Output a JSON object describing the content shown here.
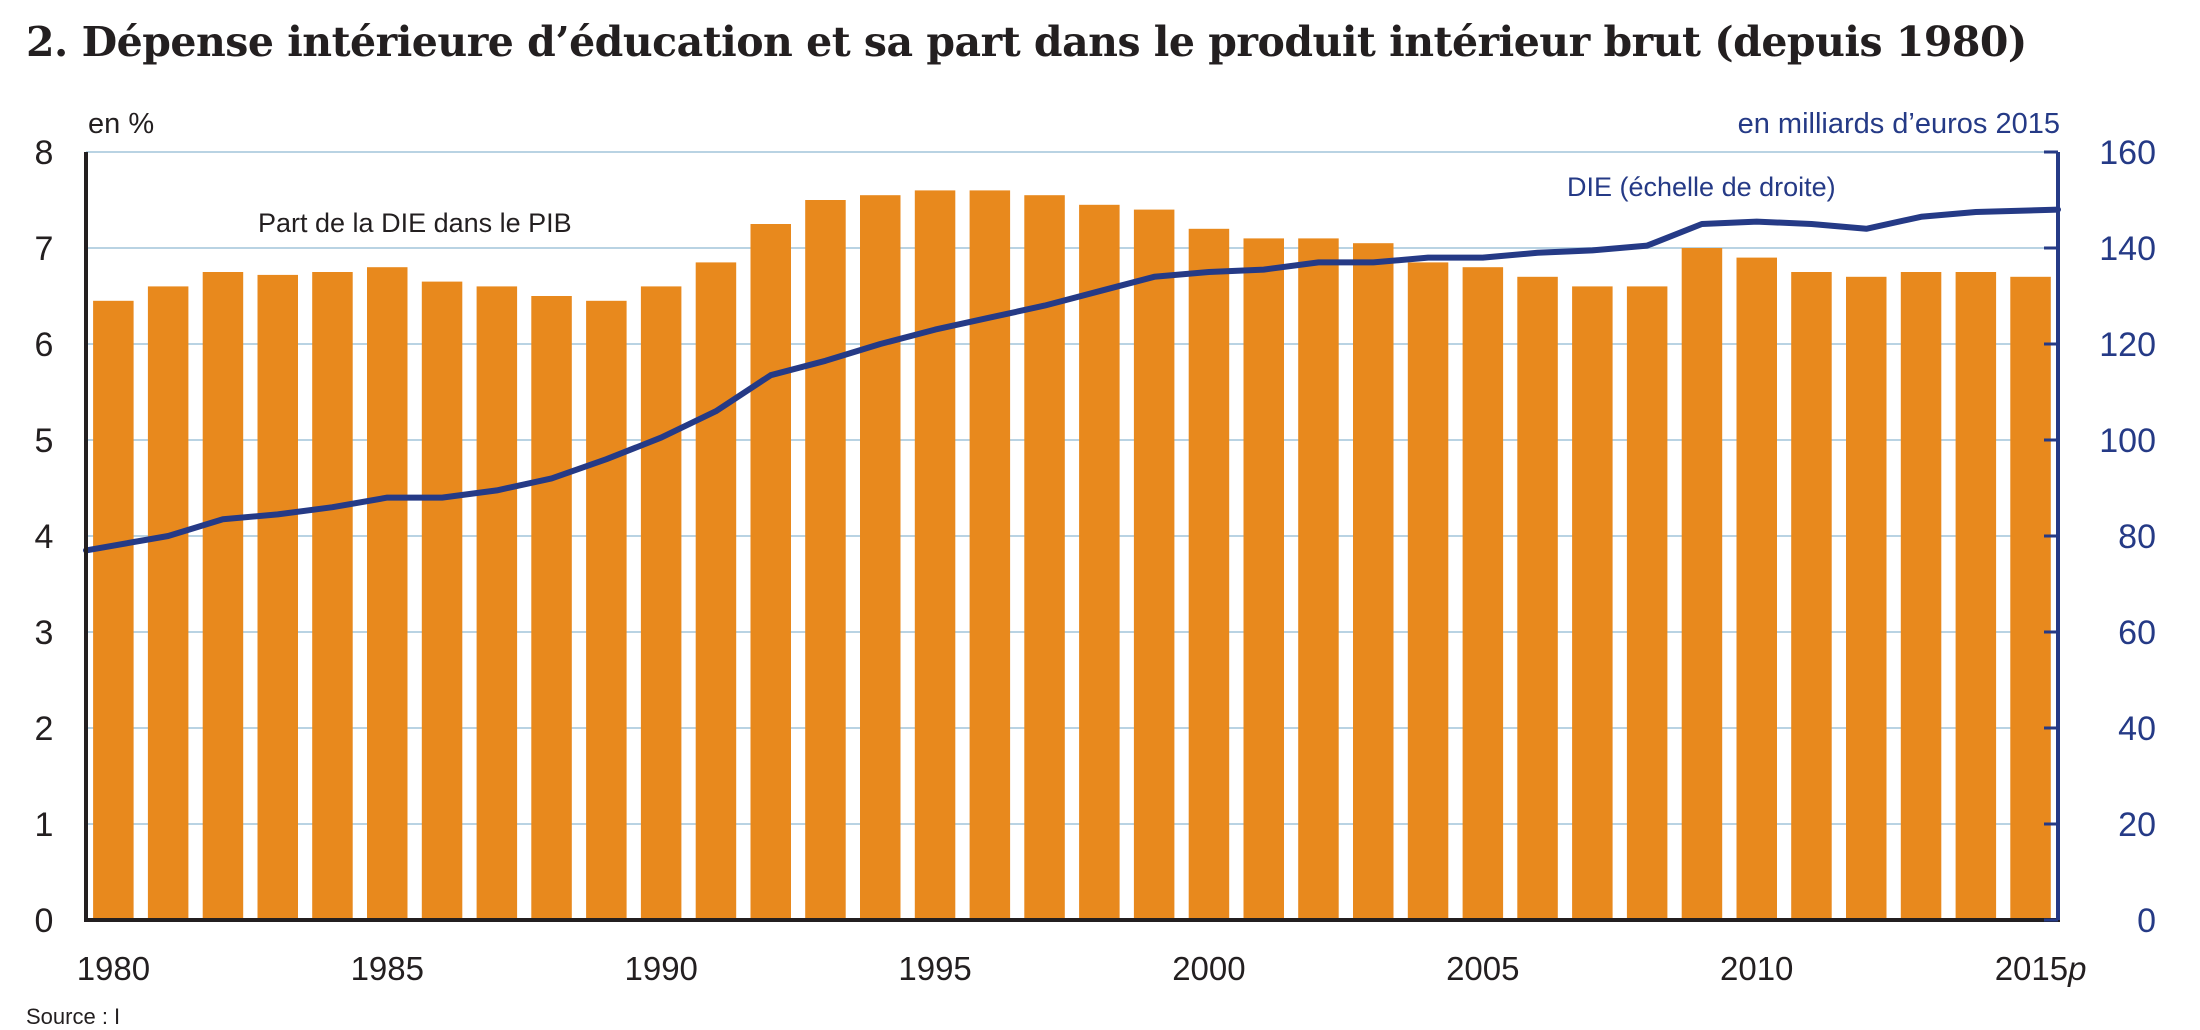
{
  "chart_data": {
    "type": "bar+line",
    "title": "2. Dépense intérieure d’éducation et sa part dans le produit intérieur brut (depuis 1980)",
    "left_axis_label": "en %",
    "right_axis_label": "en milliards d’euros 2015",
    "left_ylim": [
      0,
      8
    ],
    "right_ylim": [
      0,
      160
    ],
    "left_ticks": [
      "0",
      "1",
      "2",
      "3",
      "4",
      "5",
      "6",
      "7",
      "8"
    ],
    "right_ticks": [
      "0",
      "20",
      "40",
      "60",
      "80",
      "100",
      "120",
      "140",
      "160"
    ],
    "x_tick_labels": [
      {
        "year": 1980,
        "label": "1980"
      },
      {
        "year": 1985,
        "label": "1985"
      },
      {
        "year": 1990,
        "label": "1990"
      },
      {
        "year": 1995,
        "label": "1995"
      },
      {
        "year": 2000,
        "label": "2000"
      },
      {
        "year": 2005,
        "label": "2005"
      },
      {
        "year": 2010,
        "label": "2010"
      },
      {
        "year": 2015,
        "label": "2015",
        "suffix": "p"
      }
    ],
    "x": [
      1980,
      1981,
      1982,
      1983,
      1984,
      1985,
      1986,
      1987,
      1988,
      1989,
      1990,
      1991,
      1992,
      1993,
      1994,
      1995,
      1996,
      1997,
      1998,
      1999,
      2000,
      2001,
      2002,
      2003,
      2004,
      2005,
      2006,
      2007,
      2008,
      2009,
      2010,
      2011,
      2012,
      2013,
      2014,
      2015
    ],
    "grid": true,
    "series": [
      {
        "name": "Part de la DIE dans le PIB",
        "type": "bar",
        "axis": "left",
        "color": "#e8891d",
        "values": [
          6.45,
          6.6,
          6.75,
          6.72,
          6.75,
          6.8,
          6.65,
          6.6,
          6.5,
          6.45,
          6.6,
          6.85,
          7.25,
          7.5,
          7.55,
          7.6,
          7.6,
          7.55,
          7.45,
          7.4,
          7.2,
          7.1,
          7.1,
          7.05,
          6.85,
          6.8,
          6.7,
          6.6,
          6.6,
          7.0,
          6.9,
          6.75,
          6.7,
          6.75,
          6.75,
          6.7
        ]
      },
      {
        "name": "DIE (échelle de droite)",
        "type": "line",
        "axis": "right",
        "color": "#253a86",
        "values": [
          77,
          80,
          83.5,
          84.5,
          86,
          88,
          88,
          89.5,
          92,
          96,
          100.5,
          106,
          113.5,
          116.5,
          120,
          123,
          125.5,
          128,
          131,
          134,
          135,
          135.5,
          137,
          137,
          138,
          138,
          139,
          139.5,
          140.5,
          145,
          145.5,
          145,
          144,
          146.5,
          147.5,
          148
        ]
      }
    ]
  },
  "colors": {
    "grid": "#b9d3e3",
    "left_axis": "#231f20",
    "right_axis": "#253a86",
    "text": "#231f20"
  },
  "source_partial": "Source : I"
}
